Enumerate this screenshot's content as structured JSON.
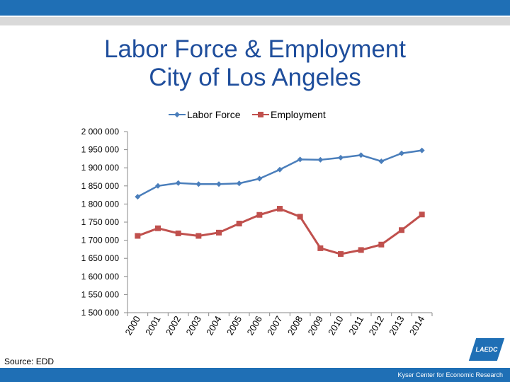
{
  "title_line1": "Labor Force & Employment",
  "title_line2": "City of Los Angeles",
  "source": "Source: EDD",
  "logo_text": "LAEDC",
  "footer": "Kyser Center for Economic Research",
  "colors": {
    "header": "#1f6fb5",
    "title": "#1f4e9c",
    "labor_force": "#4a7ebb",
    "employment": "#c0504d"
  },
  "chart_data": {
    "type": "line",
    "x": [
      "2000",
      "2001",
      "2002",
      "2003",
      "2004",
      "2005",
      "2006",
      "2007",
      "2008",
      "2009",
      "2010",
      "2011",
      "2012",
      "2013",
      "2014"
    ],
    "series": [
      {
        "name": "Labor Force",
        "marker": "diamond",
        "values": [
          1820000,
          1850000,
          1858000,
          1855000,
          1855000,
          1857000,
          1870000,
          1895000,
          1923000,
          1922000,
          1928000,
          1935000,
          1918000,
          1940000,
          1948000
        ]
      },
      {
        "name": "Employment",
        "marker": "square",
        "values": [
          1712000,
          1733000,
          1719000,
          1712000,
          1721000,
          1746000,
          1770000,
          1787000,
          1765000,
          1678000,
          1662000,
          1673000,
          1688000,
          1728000,
          1771000
        ]
      }
    ],
    "ylim": [
      1500000,
      2000000
    ],
    "yticks": [
      "1 500 000",
      "1 550 000",
      "1 600 000",
      "1 650 000",
      "1 700 000",
      "1 750 000",
      "1 800 000",
      "1 850 000",
      "1 900 000",
      "1 950 000",
      "2 000 000"
    ],
    "legend_position": "top",
    "grid": false
  }
}
